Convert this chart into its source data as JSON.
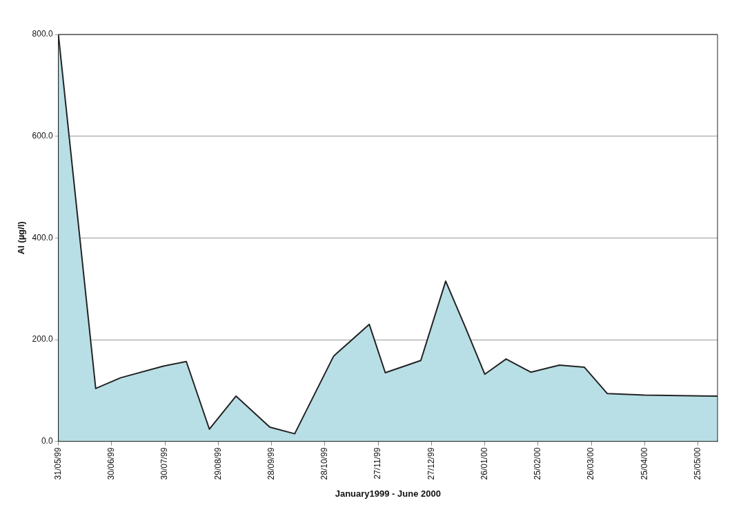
{
  "chart_data": {
    "type": "area",
    "xlabel": "January1999 - June 2000",
    "ylabel": "Al (µg/l)",
    "x": [
      "1999-05-31",
      "1999-06-21",
      "1999-07-05",
      "1999-07-29",
      "1999-08-11",
      "1999-08-24",
      "1999-09-08",
      "1999-09-27",
      "1999-10-11",
      "1999-11-02",
      "1999-11-22",
      "1999-12-01",
      "1999-12-21",
      "2000-01-04",
      "2000-01-15",
      "2000-01-26",
      "2000-02-07",
      "2000-02-21",
      "2000-03-08",
      "2000-03-22",
      "2000-04-04",
      "2000-04-25",
      "2000-06-05"
    ],
    "series": [
      {
        "color": "#b9dfe6",
        "values": [
          800,
          104,
          125,
          148,
          157,
          24,
          89,
          28,
          15,
          168,
          230,
          135,
          159,
          315,
          225,
          132,
          162,
          136,
          150,
          146,
          94,
          91,
          89
        ]
      }
    ],
    "xlim": [
      "1999-05-31",
      "2000-06-05"
    ],
    "xticks": [
      {
        "value": "1999-05-31",
        "label": "31/05/99"
      },
      {
        "value": "1999-06-30",
        "label": "30/06/99"
      },
      {
        "value": "1999-07-30",
        "label": "30/07/99"
      },
      {
        "value": "1999-08-29",
        "label": "29/08/99"
      },
      {
        "value": "1999-09-28",
        "label": "28/09/99"
      },
      {
        "value": "1999-10-28",
        "label": "28/10/99"
      },
      {
        "value": "1999-11-27",
        "label": "27/11/99"
      },
      {
        "value": "1999-12-27",
        "label": "27/12/99"
      },
      {
        "value": "2000-01-26",
        "label": "26/01/00"
      },
      {
        "value": "2000-02-25",
        "label": "25/02/00"
      },
      {
        "value": "2000-03-26",
        "label": "26/03/00"
      },
      {
        "value": "2000-04-25",
        "label": "25/04/00"
      },
      {
        "value": "2000-05-25",
        "label": "25/05/00"
      }
    ],
    "ylim": [
      0,
      800
    ],
    "yticks": [
      {
        "value": 0,
        "label": "0.0"
      },
      {
        "value": 200,
        "label": "200.0"
      },
      {
        "value": 400,
        "label": "400.0"
      },
      {
        "value": 600,
        "label": "600.0"
      },
      {
        "value": 800,
        "label": "800.0"
      }
    ],
    "grid": "y",
    "marker": "none",
    "line_style": "solid",
    "legend": false
  }
}
